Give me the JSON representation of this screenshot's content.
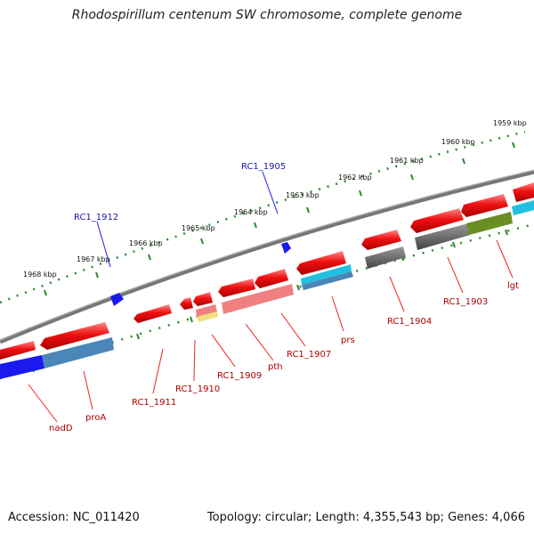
{
  "title": "Rhodospirillum centenum SW chromosome, complete genome",
  "footer": {
    "accession": "Accession: NC_011420",
    "meta": "Topology: circular; Length: 4,355,543 bp; Genes: 4,066"
  },
  "kbp_labels": [
    "1968 kbp",
    "1967 kbp",
    "1966 kbp",
    "1965 kbp",
    "1964 kbp",
    "1963 kbp",
    "1962 kbp",
    "1961 kbp",
    "1960 kbp",
    "1959 kbp"
  ],
  "top_features": [
    {
      "label": "RC1_1912",
      "color": "#1a1aa8"
    },
    {
      "label": "RC1_1905",
      "color": "#1a1aa8"
    }
  ],
  "bottom_features": [
    {
      "label": "nadD"
    },
    {
      "label": "proA"
    },
    {
      "label": "RC1_1911"
    },
    {
      "label": "RC1_1910"
    },
    {
      "label": "RC1_1909"
    },
    {
      "label": "pth"
    },
    {
      "label": "RC1_1907"
    },
    {
      "label": "prs"
    },
    {
      "label": "RC1_1904"
    },
    {
      "label": "RC1_1903"
    },
    {
      "label": "lgt"
    }
  ],
  "colors": {
    "gene_red": "#ee1111",
    "gene_pink": "#f08080",
    "gene_blue": "#1a1aee",
    "gene_steel": "#4a86b8",
    "gene_cyan": "#22c0e0",
    "gene_gray": "#555555",
    "gene_olive": "#6b8e23",
    "tick_green": "#2a8a2a",
    "backbone": "#888888"
  }
}
